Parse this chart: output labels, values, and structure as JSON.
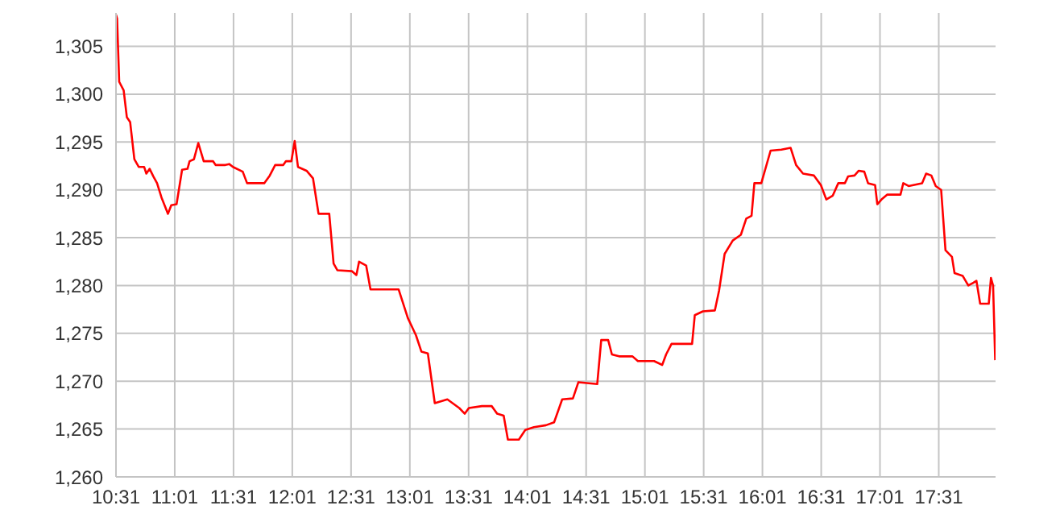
{
  "chart_data": {
    "type": "line",
    "x": [
      10.517,
      10.526,
      10.544,
      10.582,
      10.609,
      10.637,
      10.673,
      10.71,
      10.756,
      10.775,
      10.803,
      10.835,
      10.866,
      10.904,
      10.959,
      10.987,
      11.032,
      11.079,
      11.125,
      11.143,
      11.18,
      11.217,
      11.263,
      11.342,
      11.364,
      11.447,
      11.48,
      11.512,
      11.595,
      11.632,
      11.778,
      11.825,
      11.871,
      11.94,
      11.963,
      12.009,
      12.037,
      12.065,
      12.138,
      12.193,
      12.24,
      12.331,
      12.368,
      12.4,
      12.525,
      12.562,
      12.585,
      12.645,
      12.682,
      12.921,
      13.0,
      13.069,
      13.115,
      13.17,
      13.229,
      13.336,
      13.437,
      13.484,
      13.519,
      13.63,
      13.713,
      13.76,
      13.815,
      13.851,
      13.944,
      13.999,
      14.073,
      14.175,
      14.244,
      14.313,
      14.404,
      14.451,
      14.611,
      14.645,
      14.704,
      14.736,
      14.797,
      14.911,
      14.957,
      15.095,
      15.164,
      15.197,
      15.243,
      15.418,
      15.441,
      15.51,
      15.612,
      15.648,
      15.695,
      15.764,
      15.833,
      15.879,
      15.924,
      15.948,
      16.007,
      16.086,
      16.178,
      16.256,
      16.303,
      16.362,
      16.455,
      16.514,
      16.56,
      16.615,
      16.662,
      16.718,
      16.745,
      16.8,
      16.836,
      16.883,
      16.915,
      16.975,
      16.994,
      17.03,
      17.077,
      17.191,
      17.215,
      17.26,
      17.375,
      17.409,
      17.454,
      17.491,
      17.537,
      17.574,
      17.629,
      17.651,
      17.721,
      17.768,
      17.813,
      17.837,
      17.869,
      17.942,
      17.961,
      17.979,
      17.997
    ],
    "series": [
      {
        "color": "#ff0000",
        "values": [
          1308.3,
          1307.9,
          1301.3,
          1300.4,
          1297.6,
          1297.1,
          1293.2,
          1292.4,
          1292.4,
          1291.7,
          1292.2,
          1291.4,
          1290.7,
          1289.2,
          1287.5,
          1288.4,
          1288.5,
          1292.1,
          1292.2,
          1293,
          1293.2,
          1294.9,
          1293,
          1293,
          1292.6,
          1292.6,
          1292.7,
          1292.4,
          1291.9,
          1290.7,
          1290.7,
          1291.5,
          1292.6,
          1292.6,
          1293,
          1293,
          1295.1,
          1292.4,
          1292,
          1291.2,
          1287.5,
          1287.5,
          1282.3,
          1281.6,
          1281.5,
          1281.1,
          1282.5,
          1282.1,
          1279.6,
          1279.6,
          1276.6,
          1274.8,
          1273.1,
          1272.9,
          1267.7,
          1268.1,
          1267.2,
          1266.6,
          1267.2,
          1267.4,
          1267.4,
          1266.6,
          1266.4,
          1263.9,
          1263.9,
          1264.9,
          1265.2,
          1265.4,
          1265.7,
          1268.1,
          1268.2,
          1269.9,
          1269.7,
          1274.3,
          1274.3,
          1272.8,
          1272.6,
          1272.6,
          1272.1,
          1272.1,
          1271.7,
          1272.8,
          1273.9,
          1273.9,
          1276.9,
          1277.3,
          1277.4,
          1279.5,
          1283.3,
          1284.7,
          1285.3,
          1287,
          1287.3,
          1290.7,
          1290.7,
          1294.1,
          1294.2,
          1294.4,
          1292.6,
          1291.7,
          1291.5,
          1290.5,
          1289,
          1289.4,
          1290.7,
          1290.7,
          1291.4,
          1291.5,
          1292,
          1291.9,
          1290.7,
          1290.5,
          1288.5,
          1289,
          1289.5,
          1289.5,
          1290.7,
          1290.4,
          1290.7,
          1291.7,
          1291.5,
          1290.4,
          1290,
          1283.7,
          1283,
          1281.3,
          1281,
          1280,
          1280.3,
          1280.5,
          1278.1,
          1278.1,
          1280.8,
          1280,
          1272.2
        ]
      }
    ],
    "xlim": [
      10.5167,
      18.0
    ],
    "xticks": [
      {
        "value": 10.5167,
        "label": "10:31"
      },
      {
        "value": 11.0167,
        "label": "11:01"
      },
      {
        "value": 11.5167,
        "label": "11:31"
      },
      {
        "value": 12.0167,
        "label": "12:01"
      },
      {
        "value": 12.5167,
        "label": "12:31"
      },
      {
        "value": 13.0167,
        "label": "13:01"
      },
      {
        "value": 13.5167,
        "label": "13:31"
      },
      {
        "value": 14.0167,
        "label": "14:01"
      },
      {
        "value": 14.5167,
        "label": "14:31"
      },
      {
        "value": 15.0167,
        "label": "15:01"
      },
      {
        "value": 15.5167,
        "label": "15:31"
      },
      {
        "value": 16.0167,
        "label": "16:01"
      },
      {
        "value": 16.5167,
        "label": "16:31"
      },
      {
        "value": 17.0167,
        "label": "17:01"
      },
      {
        "value": 17.5167,
        "label": "17:31"
      }
    ],
    "ylim": [
      1260,
      1308.5
    ],
    "yticks": [
      {
        "value": 1260,
        "label": "1,260"
      },
      {
        "value": 1265,
        "label": "1,265"
      },
      {
        "value": 1270,
        "label": "1,270"
      },
      {
        "value": 1275,
        "label": "1,275"
      },
      {
        "value": 1280,
        "label": "1,280"
      },
      {
        "value": 1285,
        "label": "1,285"
      },
      {
        "value": 1290,
        "label": "1,290"
      },
      {
        "value": 1295,
        "label": "1,295"
      },
      {
        "value": 1300,
        "label": "1,300"
      },
      {
        "value": 1305,
        "label": "1,305"
      }
    ],
    "grid": true,
    "marker": "none",
    "line_style": "solid"
  }
}
